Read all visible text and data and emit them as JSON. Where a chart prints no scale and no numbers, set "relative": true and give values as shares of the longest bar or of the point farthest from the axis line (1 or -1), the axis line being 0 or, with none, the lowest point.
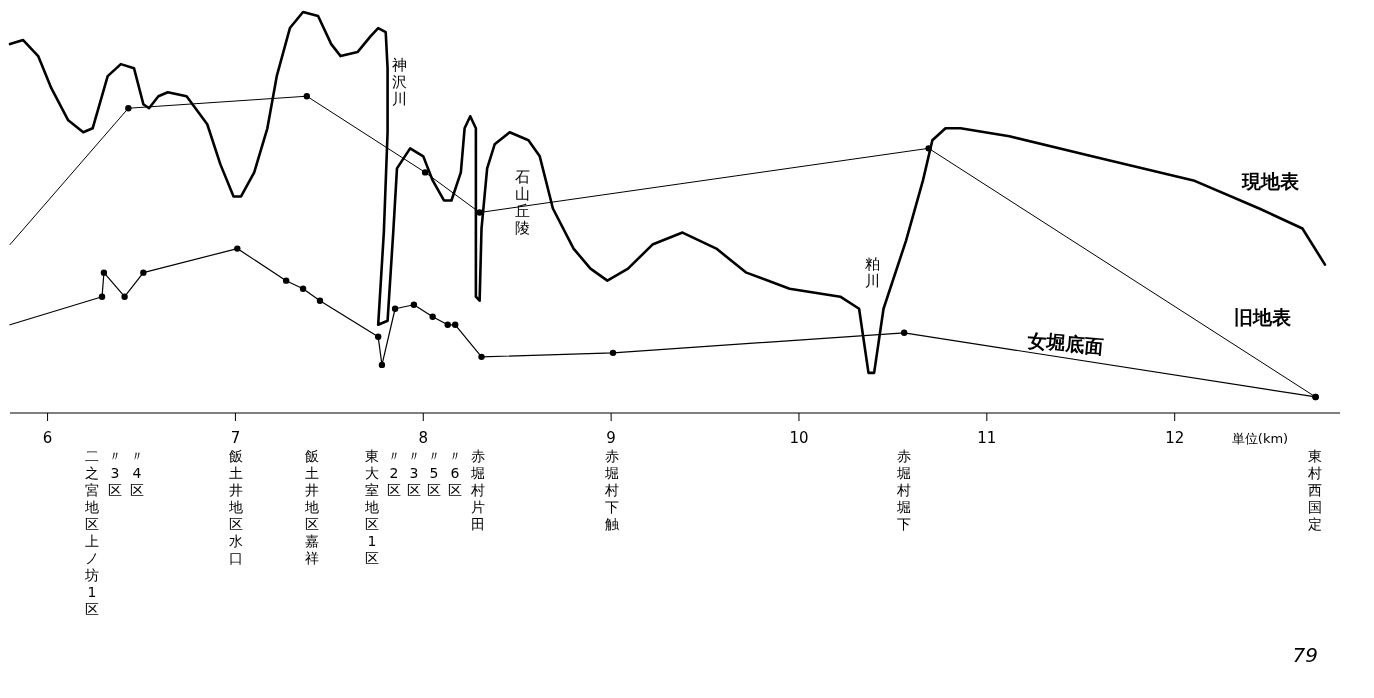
{
  "chart_data": {
    "type": "line",
    "relative": true,
    "xlabel": "単位(km)",
    "xlim": [
      5.8,
      12.88
    ],
    "xticks": [
      6,
      7,
      8,
      9,
      10,
      11,
      12
    ],
    "grid": false,
    "legend": false,
    "marker": "circle",
    "line_style": "solid",
    "series": [
      {
        "name": "現地表",
        "color": "#000000",
        "marker": "none",
        "x": [
          5.8,
          5.87,
          5.95,
          6.02,
          6.11,
          6.19,
          6.24,
          6.32,
          6.39,
          6.46,
          6.51,
          6.54,
          6.59,
          6.64,
          6.74,
          6.85,
          6.92,
          6.99,
          7.03,
          7.1,
          7.17,
          7.22,
          7.29,
          7.36,
          7.44,
          7.51,
          7.56,
          7.65,
          7.72,
          7.76,
          7.8,
          7.81,
          7.81,
          7.79,
          7.76,
          7.81,
          7.84,
          7.86,
          7.93,
          8.0,
          8.05,
          8.11,
          8.15,
          8.2,
          8.22,
          8.25,
          8.28,
          8.28,
          8.28,
          8.3,
          8.31,
          8.34,
          8.38,
          8.46,
          8.56,
          8.62,
          8.69,
          8.8,
          8.89,
          8.98,
          9.09,
          9.22,
          9.38,
          9.56,
          9.72,
          9.95,
          10.22,
          10.32,
          10.37,
          10.4,
          10.45,
          10.57,
          10.66,
          10.71,
          10.78,
          10.86,
          11.12,
          11.56,
          12.1,
          12.45,
          12.68,
          12.8
        ],
        "values": [
          0.92,
          0.93,
          0.89,
          0.81,
          0.73,
          0.7,
          0.71,
          0.84,
          0.87,
          0.86,
          0.77,
          0.76,
          0.79,
          0.8,
          0.79,
          0.72,
          0.62,
          0.54,
          0.54,
          0.6,
          0.71,
          0.84,
          0.96,
          1.0,
          0.99,
          0.92,
          0.89,
          0.9,
          0.94,
          0.96,
          0.95,
          0.86,
          0.7,
          0.45,
          0.22,
          0.23,
          0.45,
          0.61,
          0.66,
          0.64,
          0.58,
          0.53,
          0.53,
          0.6,
          0.71,
          0.74,
          0.71,
          0.51,
          0.29,
          0.28,
          0.46,
          0.61,
          0.67,
          0.7,
          0.68,
          0.64,
          0.51,
          0.41,
          0.36,
          0.33,
          0.36,
          0.42,
          0.45,
          0.41,
          0.35,
          0.31,
          0.29,
          0.26,
          0.1,
          0.1,
          0.26,
          0.43,
          0.58,
          0.68,
          0.71,
          0.71,
          0.69,
          0.64,
          0.58,
          0.51,
          0.46,
          0.37
        ]
      },
      {
        "name": "旧地表",
        "color": "#000000",
        "x": [
          5.8,
          6.43,
          7.38,
          8.01,
          8.3,
          10.69,
          12.75
        ],
        "values": [
          0.42,
          0.76,
          0.79,
          0.6,
          0.5,
          0.66,
          0.04
        ]
      },
      {
        "name": "女堀底面",
        "color": "#000000",
        "x": [
          5.8,
          6.29,
          6.3,
          6.41,
          6.51,
          7.01,
          7.27,
          7.36,
          7.45,
          7.76,
          7.78,
          7.85,
          7.95,
          8.05,
          8.13,
          8.17,
          8.31,
          9.01,
          10.56,
          12.75
        ],
        "values": [
          0.22,
          0.29,
          0.35,
          0.29,
          0.35,
          0.41,
          0.33,
          0.31,
          0.28,
          0.19,
          0.12,
          0.26,
          0.27,
          0.24,
          0.22,
          0.22,
          0.14,
          0.15,
          0.2,
          0.04
        ]
      }
    ],
    "annotations": [
      "神沢川",
      {
        "text": "石山丘陵",
        "x": 8.53,
        "y": 0.52
      },
      "粕川",
      "二之宮地区上ノ坊1区",
      "〃3区",
      "〃4区",
      "飯土井地区水口",
      "飯土井地区嘉祥",
      "東大室地区1区",
      "〃2区",
      "〃3区",
      "〃5区",
      "〃6区",
      "赤堀村片田",
      "赤堀村下触",
      "赤堀村堀下",
      "東村西国定",
      "79"
    ]
  }
}
